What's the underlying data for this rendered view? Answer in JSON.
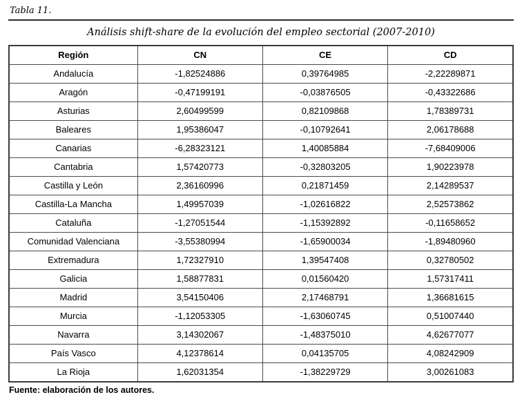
{
  "page": {
    "table_label": "Tabla 11.",
    "source": "Fuente: elaboración de los autores."
  },
  "chart_data": {
    "type": "table",
    "title": "Análisis shift-share de la evolución del empleo sectorial (2007-2010)",
    "columns": [
      "Región",
      "CN",
      "CE",
      "CD"
    ],
    "rows": [
      [
        "Andalucía",
        "-1,82524886",
        "0,39764985",
        "-2,22289871"
      ],
      [
        "Aragón",
        "-0,47199191",
        "-0,03876505",
        "-0,43322686"
      ],
      [
        "Asturias",
        "2,60499599",
        "0,82109868",
        "1,78389731"
      ],
      [
        "Baleares",
        "1,95386047",
        "-0,10792641",
        "2,06178688"
      ],
      [
        "Canarias",
        "-6,28323121",
        "1,40085884",
        "-7,68409006"
      ],
      [
        "Cantabria",
        "1,57420773",
        "-0,32803205",
        "1,90223978"
      ],
      [
        "Castilla y León",
        "2,36160996",
        "0,21871459",
        "2,14289537"
      ],
      [
        "Castilla-La Mancha",
        "1,49957039",
        "-1,02616822",
        "2,52573862"
      ],
      [
        "Cataluña",
        "-1,27051544",
        "-1,15392892",
        "-0,11658652"
      ],
      [
        "Comunidad Valenciana",
        "-3,55380994",
        "-1,65900034",
        "-1,89480960"
      ],
      [
        "Extremadura",
        "1,72327910",
        "1,39547408",
        "0,32780502"
      ],
      [
        "Galicia",
        "1,58877831",
        "0,01560420",
        "1,57317411"
      ],
      [
        "Madrid",
        "3,54150406",
        "2,17468791",
        "1,36681615"
      ],
      [
        "Murcia",
        "-1,12053305",
        "-1,63060745",
        "0,51007440"
      ],
      [
        "Navarra",
        "3,14302067",
        "-1,48375010",
        "4,62677077"
      ],
      [
        "País Vasco",
        "4,12378614",
        "0,04135705",
        "4,08242909"
      ],
      [
        "La Rioja",
        "1,62031354",
        "-1,38229729",
        "3,00261083"
      ]
    ]
  }
}
